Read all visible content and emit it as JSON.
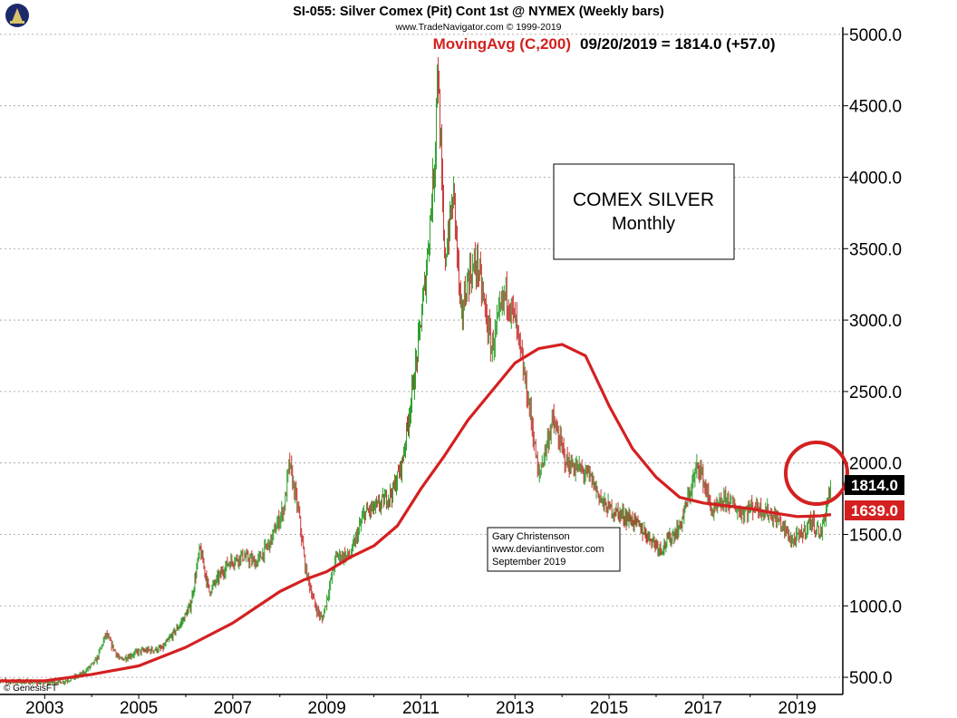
{
  "header": {
    "title": "SI-055:  Silver Comex (Pit) Cont 1st @ NYMEX  (Weekly bars)",
    "copyright": "www.TradeNavigator.com © 1999-2019",
    "ma_label": "MovingAvg (C,200)",
    "ma_value_text": "09/20/2019 = 1814.0 (+57.0)"
  },
  "annotation_box": {
    "line1": "COMEX SILVER",
    "line2": "Monthly"
  },
  "author_box": {
    "line1": "Gary Christenson",
    "line2": "www.deviantinvestor.com",
    "line3": "September 2019"
  },
  "footer": {
    "logo_text": "© GenesisFT"
  },
  "price_tags": {
    "close": "1814.0",
    "ma": "1639.0"
  },
  "colors": {
    "ma_line": "#d42020",
    "up_bar": "#2ca02c",
    "down_bar": "#c83232",
    "close_tag_bg": "#000000",
    "ma_tag_bg": "#d42020",
    "grid": "#9a9a9a"
  },
  "chart_data": {
    "type": "line",
    "title": "SI-055:  Silver Comex (Pit) Cont 1st @ NYMEX  (Weekly bars)",
    "xlabel": "",
    "ylabel": "",
    "x_ticks": [
      "2003",
      "2005",
      "2007",
      "2009",
      "2011",
      "2013",
      "2015",
      "2017",
      "2019"
    ],
    "y_ticks": [
      "500.0",
      "1000.0",
      "1500.0",
      "2000.0",
      "2500.0",
      "3000.0",
      "3500.0",
      "4000.0",
      "4500.0",
      "5000.0"
    ],
    "xlim": [
      2002.05,
      2019.97
    ],
    "ylim": [
      380,
      5050
    ],
    "y_scale": "linear",
    "grid": "horizontal dashed",
    "legend": "top",
    "series": [
      {
        "name": "Silver Comex (Pit) Cont 1st",
        "style": "price bars, green up / red down",
        "x": [
          2002.0,
          2002.5,
          2003.0,
          2003.4,
          2003.8,
          2004.1,
          2004.3,
          2004.6,
          2005.0,
          2005.5,
          2005.9,
          2006.1,
          2006.3,
          2006.5,
          2006.9,
          2007.2,
          2007.5,
          2007.8,
          2008.1,
          2008.2,
          2008.4,
          2008.55,
          2008.75,
          2008.9,
          2009.2,
          2009.5,
          2009.8,
          2010.1,
          2010.4,
          2010.6,
          2010.9,
          2011.1,
          2011.3,
          2011.35,
          2011.5,
          2011.7,
          2011.85,
          2012.0,
          2012.2,
          2012.5,
          2012.8,
          2013.0,
          2013.2,
          2013.35,
          2013.5,
          2013.8,
          2014.1,
          2014.4,
          2014.6,
          2014.9,
          2015.2,
          2015.5,
          2015.8,
          2016.1,
          2016.5,
          2016.9,
          2017.2,
          2017.5,
          2017.8,
          2018.1,
          2018.4,
          2018.6,
          2018.9,
          2019.1,
          2019.3,
          2019.5,
          2019.6,
          2019.68,
          2019.72
        ],
        "y": [
          470,
          470,
          460,
          470,
          520,
          620,
          800,
          620,
          680,
          700,
          880,
          1000,
          1400,
          1100,
          1300,
          1350,
          1300,
          1450,
          1700,
          2000,
          1650,
          1250,
          1000,
          900,
          1350,
          1350,
          1650,
          1700,
          1800,
          2000,
          2700,
          3300,
          4150,
          4850,
          3400,
          3900,
          3000,
          3300,
          3400,
          2800,
          3200,
          3000,
          2600,
          2300,
          1900,
          2300,
          2000,
          1950,
          1900,
          1700,
          1650,
          1600,
          1500,
          1400,
          1550,
          2000,
          1650,
          1750,
          1650,
          1700,
          1650,
          1600,
          1450,
          1500,
          1600,
          1500,
          1650,
          1800,
          1814
        ]
      },
      {
        "name": "MovingAvg (C,200)",
        "style": "red line",
        "x": [
          2002.0,
          2003.0,
          2004.0,
          2005.0,
          2006.0,
          2007.0,
          2008.0,
          2008.5,
          2009.0,
          2009.5,
          2010.0,
          2010.5,
          2011.0,
          2011.5,
          2012.0,
          2012.5,
          2013.0,
          2013.5,
          2014.0,
          2014.5,
          2015.0,
          2015.5,
          2016.0,
          2016.5,
          2017.0,
          2017.5,
          2018.0,
          2018.5,
          2019.0,
          2019.5,
          2019.72
        ],
        "y": [
          475,
          475,
          520,
          580,
          710,
          880,
          1100,
          1180,
          1240,
          1340,
          1420,
          1560,
          1820,
          2050,
          2300,
          2500,
          2700,
          2800,
          2830,
          2750,
          2400,
          2100,
          1900,
          1760,
          1720,
          1700,
          1680,
          1650,
          1625,
          1630,
          1639
        ]
      }
    ],
    "annotations": [
      "COMEX SILVER Monthly",
      "Gary Christenson www.deviantinvestor.com September 2019"
    ]
  }
}
